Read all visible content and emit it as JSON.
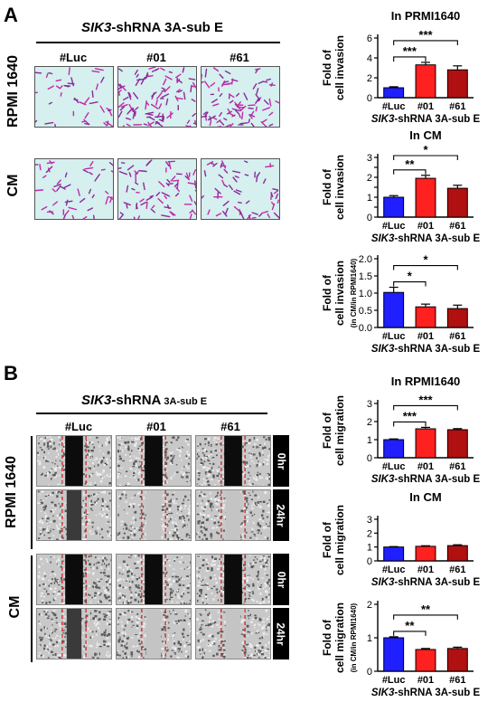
{
  "panelA": {
    "letter": "A",
    "header_gene": "SIK3",
    "header_rest": "-shRNA 3A-sub E",
    "columns": [
      "#Luc",
      "#01",
      "#61"
    ],
    "rows": [
      "RPMI 1640",
      "CM"
    ]
  },
  "panelB": {
    "letter": "B",
    "header_gene": "SIK3",
    "header_rest": "-shRNA",
    "header_sub": " 3A-sub E",
    "columns": [
      "#Luc",
      "#01",
      "#61"
    ],
    "rows": [
      "RPMI 1640",
      "CM"
    ],
    "times": [
      "0hr",
      "24hr",
      "0hr",
      "24hr"
    ]
  },
  "colors": {
    "luc": "#1f1fff",
    "sh01": "#ff2020",
    "sh61": "#b01010"
  },
  "chart_data": [
    {
      "type": "bar",
      "title": "In PRMI1640",
      "ylabel": "Fold of|cell invasion",
      "categories": [
        "#Luc",
        "#01",
        "#61"
      ],
      "values": [
        1.0,
        3.3,
        2.8
      ],
      "errors": [
        0.1,
        0.25,
        0.4
      ],
      "ylim": [
        0,
        6
      ],
      "yticks": [
        0,
        2,
        4,
        6
      ],
      "xlabel_gene": "SIK3",
      "xlabel_rest": "-shRNA 3A-sub E",
      "sig": [
        {
          "from": 0,
          "to": 1,
          "label": "***"
        },
        {
          "from": 0,
          "to": 2,
          "label": "***"
        }
      ]
    },
    {
      "type": "bar",
      "title": "In CM",
      "ylabel": "Fold of|cell invasion",
      "categories": [
        "#Luc",
        "#01",
        "#61"
      ],
      "values": [
        1.0,
        1.95,
        1.45
      ],
      "errors": [
        0.08,
        0.15,
        0.15
      ],
      "ylim": [
        0,
        3
      ],
      "yticks": [
        0.0,
        0.5,
        1.0,
        1.5,
        2.0,
        2.5,
        3.0
      ],
      "ytick_labels": [
        "0",
        "1",
        "2",
        "3"
      ],
      "ytick_label_values": [
        0,
        1,
        2,
        3
      ],
      "xlabel_gene": "SIK3",
      "xlabel_rest": "-shRNA 3A-sub E",
      "sig": [
        {
          "from": 0,
          "to": 1,
          "label": "**"
        },
        {
          "from": 0,
          "to": 2,
          "label": "*"
        }
      ]
    },
    {
      "type": "bar",
      "title": "",
      "ylabel": "Fold of|cell invasion|(in CM/in RPMI1640)",
      "categories": [
        "#Luc",
        "#01",
        "#61"
      ],
      "values": [
        1.02,
        0.6,
        0.55
      ],
      "errors": [
        0.15,
        0.08,
        0.1
      ],
      "ylim": [
        0,
        2
      ],
      "yticks": [
        0.0,
        0.5,
        1.0,
        1.5,
        2.0
      ],
      "ytick_labels": [
        "0.0",
        "0.5",
        "1.0",
        "1.5",
        "2.0"
      ],
      "ytick_label_values": [
        0,
        0.5,
        1.0,
        1.5,
        2.0
      ],
      "xlabel_gene": "SIK3",
      "xlabel_rest": "-shRNA 3A-sub E",
      "sig": [
        {
          "from": 0,
          "to": 1,
          "label": "*"
        },
        {
          "from": 0,
          "to": 2,
          "label": "*"
        }
      ]
    },
    {
      "type": "bar",
      "title": "In RPMI1640",
      "ylabel": "Fold of|cell migration",
      "categories": [
        "#Luc",
        "#01",
        "#61"
      ],
      "values": [
        1.0,
        1.6,
        1.55
      ],
      "errors": [
        0.04,
        0.08,
        0.06
      ],
      "ylim": [
        0,
        3
      ],
      "yticks": [
        0,
        1,
        2,
        3
      ],
      "xlabel_gene": "SIK3",
      "xlabel_rest": "-shRNA 3A-sub E",
      "sig": [
        {
          "from": 0,
          "to": 1,
          "label": "***"
        },
        {
          "from": 0,
          "to": 2,
          "label": "***"
        }
      ]
    },
    {
      "type": "bar",
      "title": "In CM",
      "ylabel": "Fold of|cell migration",
      "categories": [
        "#Luc",
        "#01",
        "#61"
      ],
      "values": [
        1.0,
        1.05,
        1.1
      ],
      "errors": [
        0.03,
        0.04,
        0.06
      ],
      "ylim": [
        0,
        3
      ],
      "yticks": [
        0,
        1,
        2,
        3
      ],
      "xlabel_gene": "SIK3",
      "xlabel_rest": "-shRNA 3A-sub E",
      "sig": []
    },
    {
      "type": "bar",
      "title": "",
      "ylabel": "Fold of|cell migration|(in CM/in RPMI1640)",
      "categories": [
        "#Luc",
        "#01",
        "#61"
      ],
      "values": [
        1.0,
        0.65,
        0.68
      ],
      "errors": [
        0.03,
        0.03,
        0.04
      ],
      "ylim": [
        0,
        2
      ],
      "yticks": [
        0,
        1,
        2
      ],
      "xlabel_gene": "SIK3",
      "xlabel_rest": "-shRNA 3A-sub E",
      "sig": [
        {
          "from": 0,
          "to": 1,
          "label": "**"
        },
        {
          "from": 0,
          "to": 2,
          "label": "**"
        }
      ]
    }
  ]
}
